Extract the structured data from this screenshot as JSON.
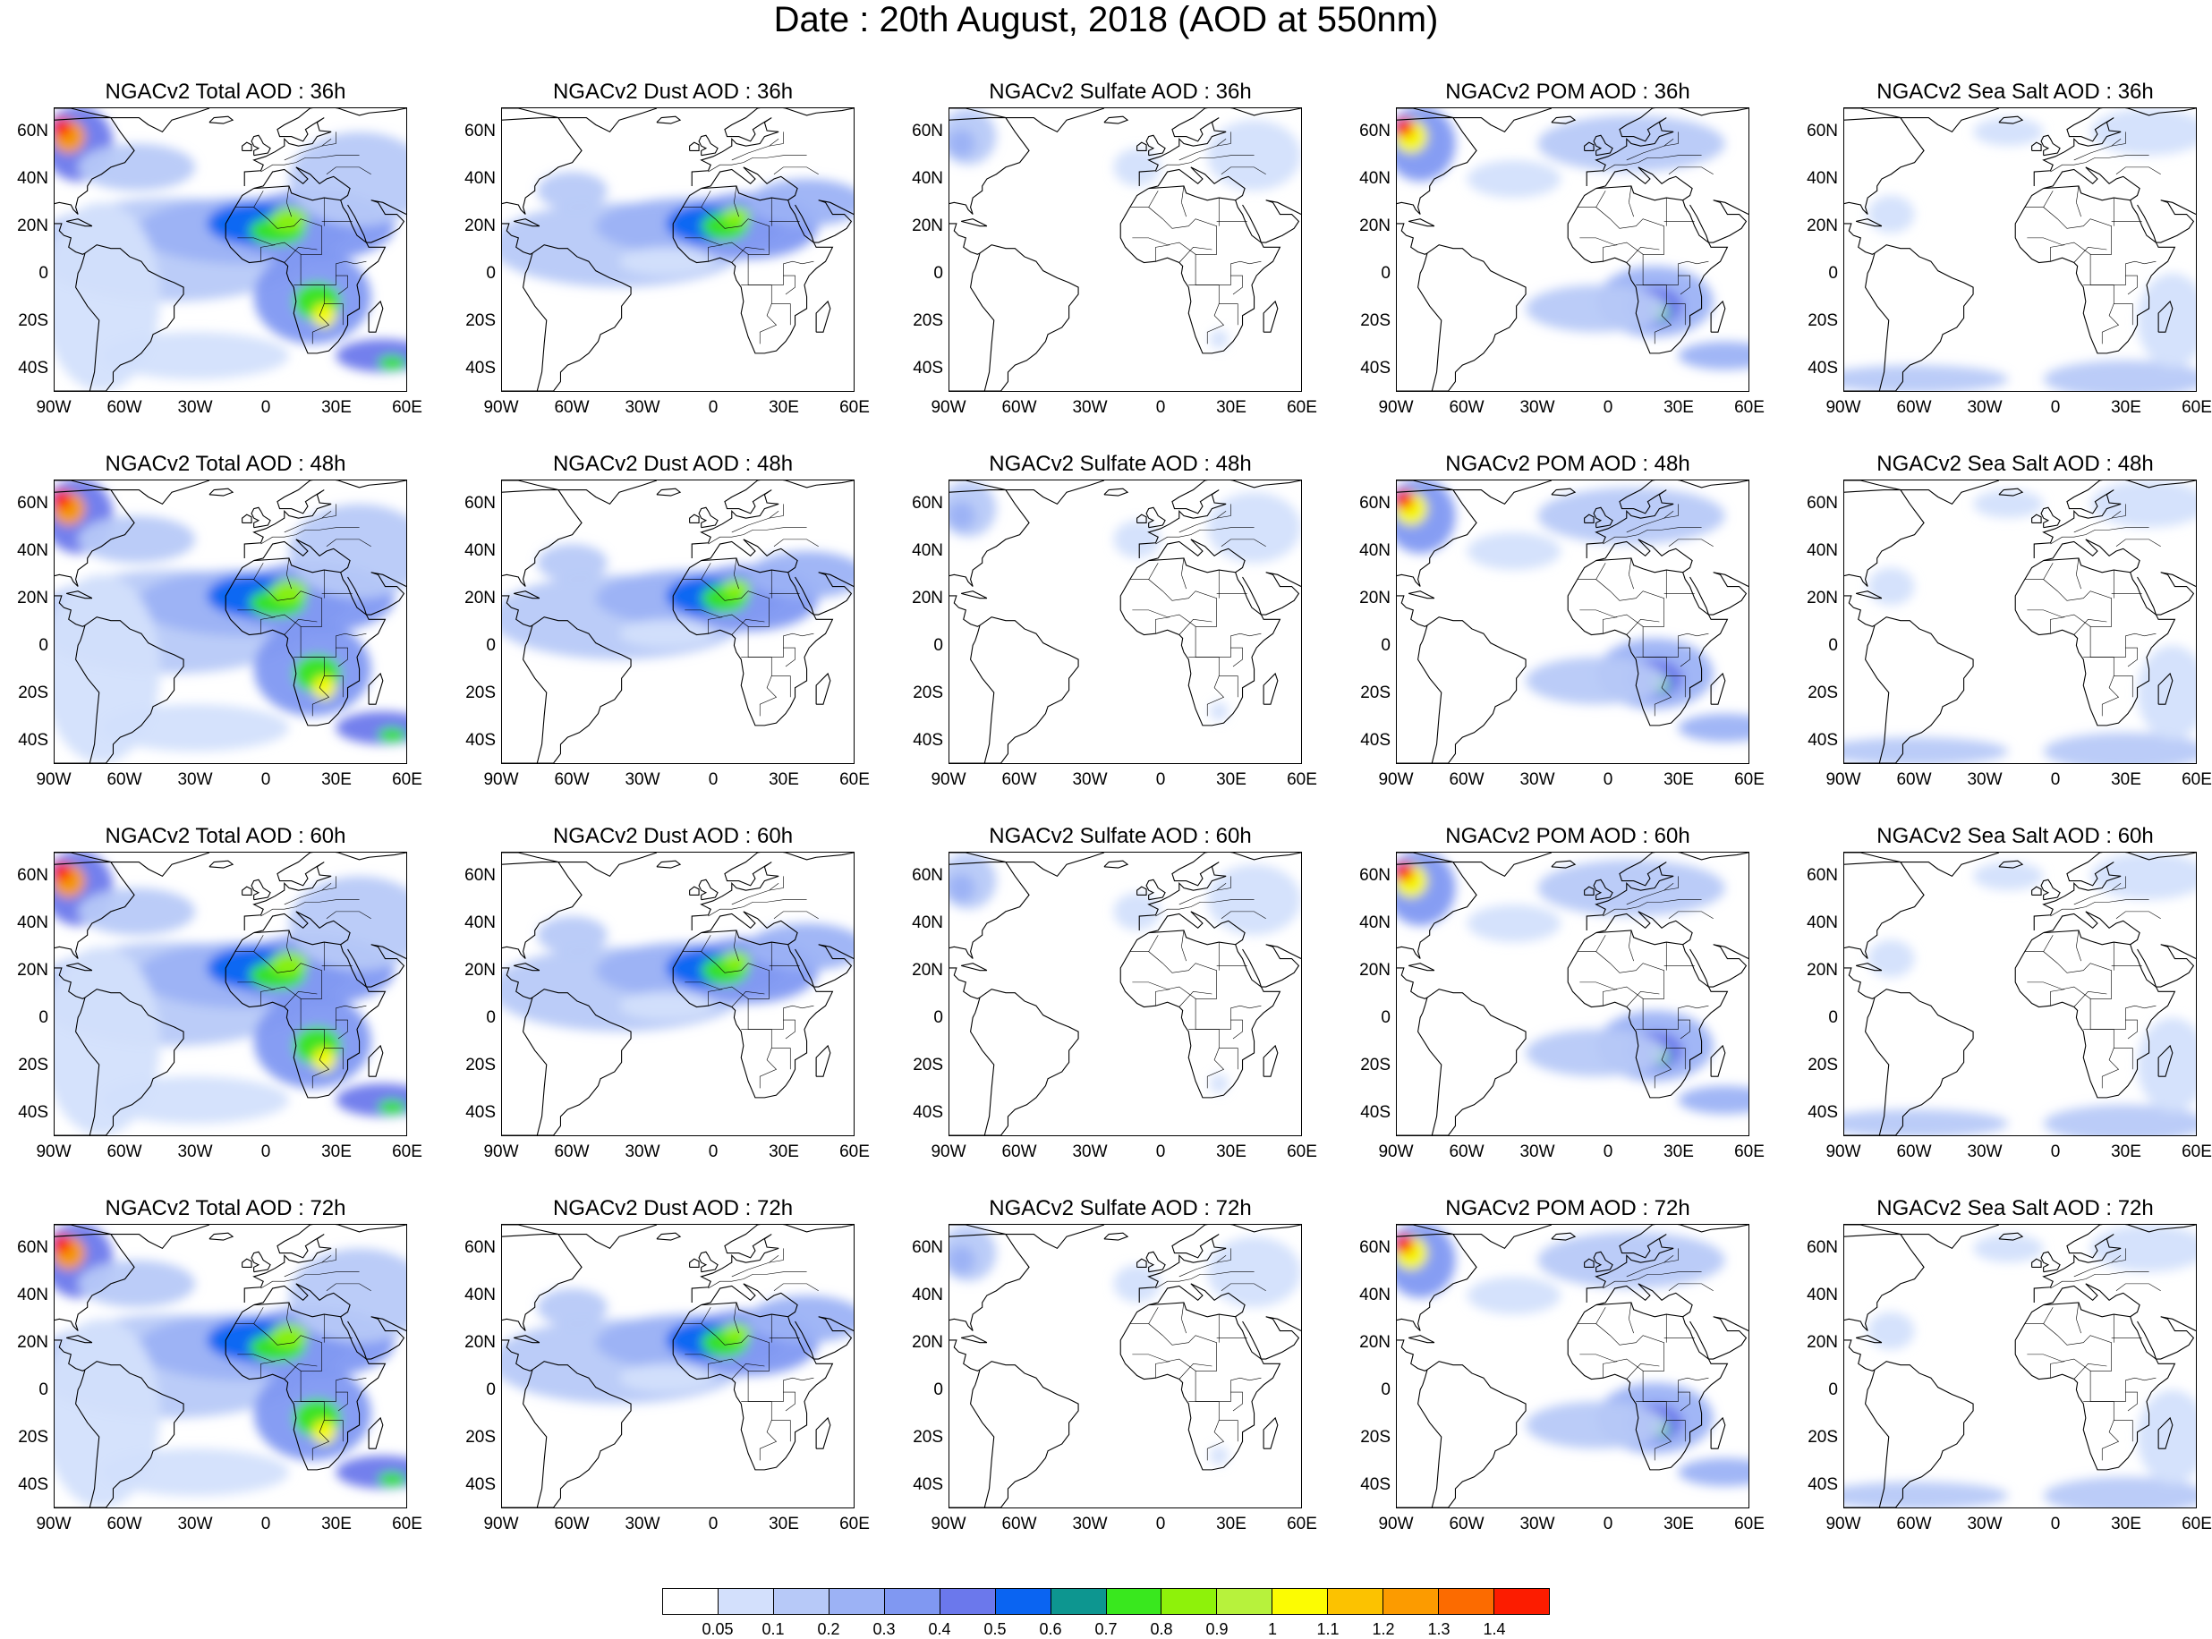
{
  "title": "Date : 20th August, 2018 (AOD at 550nm)",
  "axes": {
    "lat_labels": [
      "60N",
      "40N",
      "20N",
      "0",
      "20S",
      "40S"
    ],
    "lon_labels": [
      "90W",
      "60W",
      "30W",
      "0",
      "30E",
      "60E"
    ]
  },
  "colorbar": {
    "colors": [
      "#ffffff",
      "#d3e0fc",
      "#b7c9f8",
      "#9cb2f5",
      "#8098f2",
      "#6b78ec",
      "#0a64f2",
      "#0d9690",
      "#39e81e",
      "#8ef20a",
      "#b7f23c",
      "#fcfc02",
      "#fcc200",
      "#fc9b00",
      "#fc6b00",
      "#fc1c00"
    ],
    "labels": [
      "0.05",
      "0.1",
      "0.2",
      "0.3",
      "0.4",
      "0.5",
      "0.6",
      "0.7",
      "0.8",
      "0.9",
      "1",
      "1.1",
      "1.2",
      "1.3",
      "1.4"
    ]
  },
  "map_data": {
    "projection": "cylindrical equidistant",
    "lon_range": [
      -90,
      60
    ],
    "lat_range": [
      -50,
      70
    ],
    "panels": [
      {
        "title": "NGACv2 Total AOD : 36h",
        "species": "total",
        "hour": 36
      },
      {
        "title": "NGACv2 Dust AOD : 36h",
        "species": "dust",
        "hour": 36
      },
      {
        "title": "NGACv2 Sulfate AOD : 36h",
        "species": "sulfate",
        "hour": 36
      },
      {
        "title": "NGACv2 POM AOD : 36h",
        "species": "pom",
        "hour": 36
      },
      {
        "title": "NGACv2 Sea Salt AOD : 36h",
        "species": "seasalt",
        "hour": 36
      },
      {
        "title": "NGACv2 Total AOD : 48h",
        "species": "total",
        "hour": 48
      },
      {
        "title": "NGACv2 Dust AOD : 48h",
        "species": "dust",
        "hour": 48
      },
      {
        "title": "NGACv2 Sulfate AOD : 48h",
        "species": "sulfate",
        "hour": 48
      },
      {
        "title": "NGACv2 POM AOD : 48h",
        "species": "pom",
        "hour": 48
      },
      {
        "title": "NGACv2 Sea Salt AOD : 48h",
        "species": "seasalt",
        "hour": 48
      },
      {
        "title": "NGACv2 Total AOD : 60h",
        "species": "total",
        "hour": 60
      },
      {
        "title": "NGACv2 Dust AOD : 60h",
        "species": "dust",
        "hour": 60
      },
      {
        "title": "NGACv2 Sulfate AOD : 60h",
        "species": "sulfate",
        "hour": 60
      },
      {
        "title": "NGACv2 POM AOD : 60h",
        "species": "pom",
        "hour": 60
      },
      {
        "title": "NGACv2 Sea Salt AOD : 60h",
        "species": "seasalt",
        "hour": 60
      },
      {
        "title": "NGACv2 Total AOD : 72h",
        "species": "total",
        "hour": 72
      },
      {
        "title": "NGACv2 Dust AOD : 72h",
        "species": "dust",
        "hour": 72
      },
      {
        "title": "NGACv2 Sulfate AOD : 72h",
        "species": "sulfate",
        "hour": 72
      },
      {
        "title": "NGACv2 POM AOD : 72h",
        "species": "pom",
        "hour": 72
      },
      {
        "title": "NGACv2 Sea Salt  AOD : 72h",
        "species": "seasalt",
        "hour": 72
      }
    ]
  }
}
